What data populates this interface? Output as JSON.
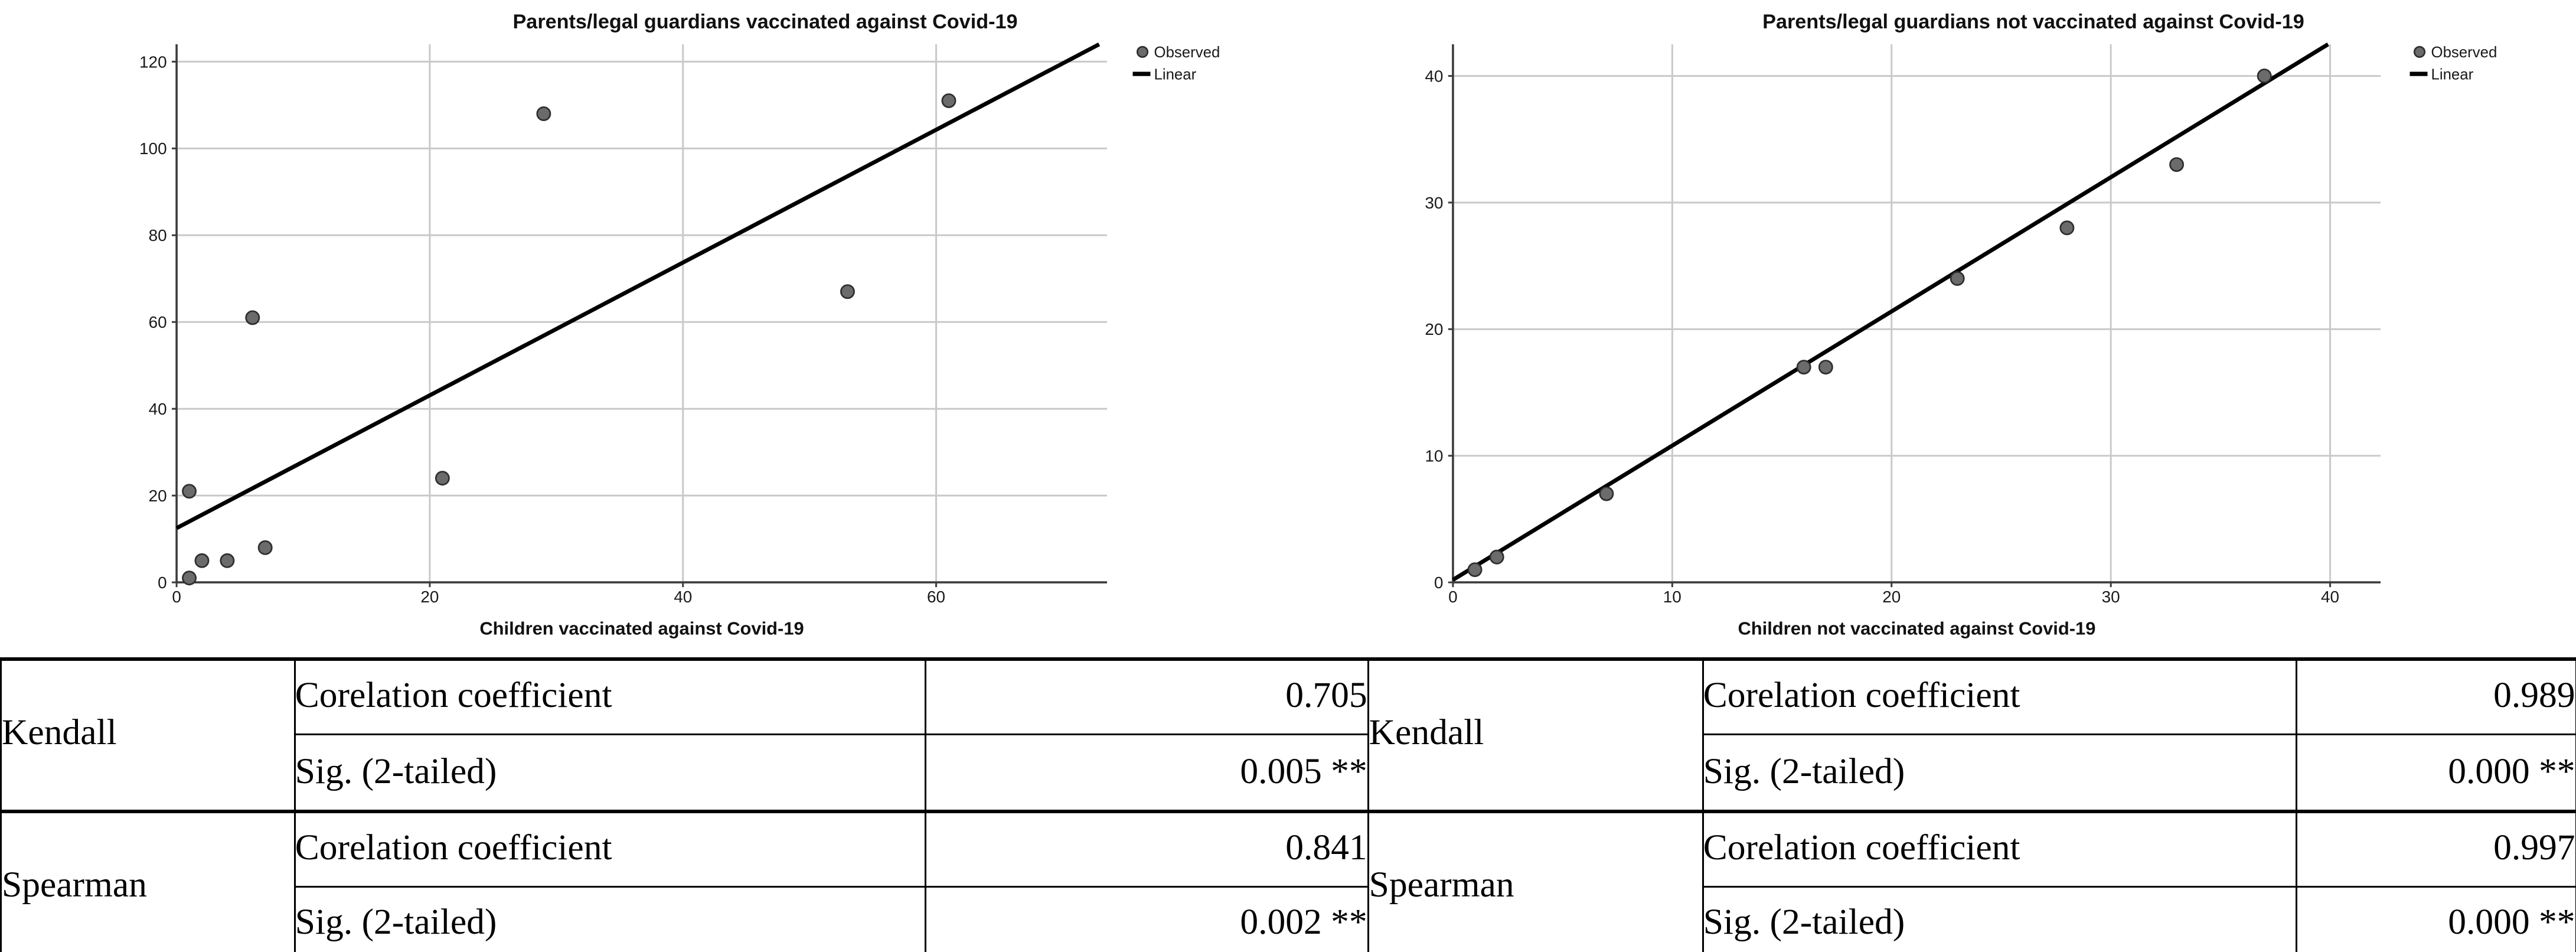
{
  "chart_data": [
    {
      "type": "scatter",
      "title": "Parents/legal guardians vaccinated against Covid-19",
      "xlabel": "Children vaccinated against Covid-19",
      "ylabel": "",
      "points": [
        [
          1,
          1
        ],
        [
          1,
          21
        ],
        [
          2,
          5
        ],
        [
          4,
          5
        ],
        [
          6,
          61
        ],
        [
          7,
          8
        ],
        [
          21,
          24
        ],
        [
          29,
          108
        ],
        [
          53,
          67
        ],
        [
          61,
          111
        ]
      ],
      "regression_line": {
        "slope": 1.53,
        "intercept": 12.5
      },
      "xticks": [
        0,
        20,
        40,
        60
      ],
      "yticks": [
        0,
        20,
        40,
        60,
        80,
        100,
        120
      ],
      "xlim": [
        0,
        73.5
      ],
      "ylim": [
        0,
        124
      ],
      "grid": true,
      "legend_position": "top-right-outside",
      "legend": [
        {
          "label": "Observed",
          "marker": "circle"
        },
        {
          "label": "Linear",
          "marker": "line"
        }
      ]
    },
    {
      "type": "scatter",
      "title": "Parents/legal guardians not vaccinated against Covid-19",
      "xlabel": "Children not vaccinated against Covid-19",
      "ylabel": "",
      "points": [
        [
          1,
          1
        ],
        [
          2,
          2
        ],
        [
          7,
          7
        ],
        [
          16,
          17
        ],
        [
          17,
          17
        ],
        [
          23,
          24
        ],
        [
          28,
          28
        ],
        [
          33,
          33
        ],
        [
          37,
          40
        ]
      ],
      "regression_line": {
        "slope": 1.06,
        "intercept": 0.2
      },
      "xticks": [
        0,
        10,
        20,
        30,
        40
      ],
      "yticks": [
        0,
        10,
        20,
        30,
        40
      ],
      "xlim": [
        0,
        42.3
      ],
      "ylim": [
        0,
        42.5
      ],
      "grid": true,
      "legend_position": "top-right-outside",
      "legend": [
        {
          "label": "Observed",
          "marker": "circle"
        },
        {
          "label": "Linear",
          "marker": "line"
        }
      ]
    }
  ],
  "colors": {
    "marker_fill": "#6b6b6b",
    "marker_stroke": "#2e2e2e",
    "regression_line": "#000000",
    "grid": "#c9c9c9",
    "axis": "#3c3c3c",
    "table_border": "#000000"
  },
  "table": {
    "halves": [
      {
        "groups": [
          {
            "method": "Kendall",
            "rows": [
              {
                "label": "Corelation coefficient",
                "value": "0.705"
              },
              {
                "label": "Sig. (2-tailed)",
                "value": "0.005 **"
              }
            ]
          },
          {
            "method": "Spearman",
            "rows": [
              {
                "label": "Corelation coefficient",
                "value": "0.841"
              },
              {
                "label": "Sig. (2-tailed)",
                "value": "0.002 **"
              }
            ]
          }
        ]
      },
      {
        "groups": [
          {
            "method": "Kendall",
            "rows": [
              {
                "label": "Corelation coefficient",
                "value": "0.989"
              },
              {
                "label": "Sig. (2-tailed)",
                "value": "0.000 **"
              }
            ]
          },
          {
            "method": "Spearman",
            "rows": [
              {
                "label": "Corelation coefficient",
                "value": "0.997"
              },
              {
                "label": "Sig. (2-tailed)",
                "value": "0.000 **"
              }
            ]
          }
        ]
      }
    ]
  }
}
